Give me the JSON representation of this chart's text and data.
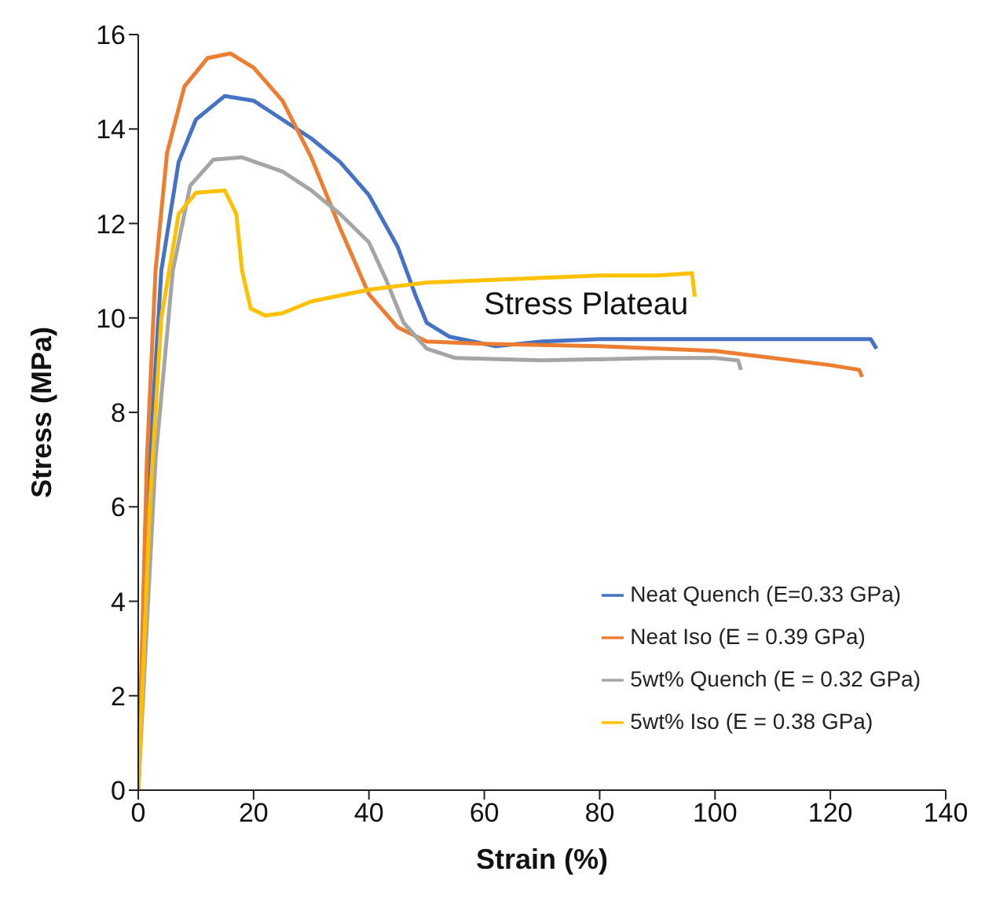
{
  "chart_data": {
    "type": "line",
    "xlabel": "Strain (%)",
    "ylabel": "Stress (MPa)",
    "xlim": [
      0,
      140
    ],
    "xticks": [
      0,
      20,
      40,
      60,
      80,
      100,
      120,
      140
    ],
    "ylim": [
      0,
      16
    ],
    "yticks": [
      0,
      2,
      4,
      6,
      8,
      10,
      12,
      14,
      16
    ],
    "grid": false,
    "legend": "bottom right",
    "marker": "none",
    "line_style": "solid",
    "annotations": [
      "Stress Plateau"
    ],
    "series": [
      {
        "name": "Neat Quench (E=0.33 GPa)",
        "color": "#4472c4",
        "x": [
          0,
          2,
          4,
          7,
          10,
          15,
          20,
          25,
          30,
          35,
          40,
          45,
          48,
          50,
          54,
          58,
          62,
          70,
          80,
          100,
          120,
          127,
          128
        ],
        "values": [
          0,
          7,
          11,
          13.3,
          14.2,
          14.7,
          14.6,
          14.2,
          13.8,
          13.3,
          12.6,
          11.5,
          10.5,
          9.9,
          9.6,
          9.5,
          9.4,
          9.5,
          9.55,
          9.55,
          9.55,
          9.55,
          9.35
        ]
      },
      {
        "name": "Neat Iso (E = 0.39 GPa)",
        "color": "#ed7d31",
        "x": [
          0,
          1.5,
          3,
          5,
          8,
          12,
          16,
          20,
          25,
          30,
          35,
          40,
          45,
          50,
          60,
          80,
          100,
          110,
          120,
          125,
          125.5
        ],
        "values": [
          0,
          7,
          11,
          13.5,
          14.9,
          15.5,
          15.6,
          15.3,
          14.6,
          13.4,
          11.9,
          10.5,
          9.8,
          9.5,
          9.45,
          9.4,
          9.3,
          9.15,
          9,
          8.9,
          8.75
        ]
      },
      {
        "name": "5wt% Quench (E = 0.32 GPa)",
        "color": "#a5a5a5",
        "x": [
          0,
          3,
          6,
          9,
          13,
          18,
          25,
          30,
          35,
          40,
          43,
          46,
          50,
          55,
          70,
          90,
          100,
          104,
          104.5
        ],
        "values": [
          0,
          7,
          11,
          12.8,
          13.35,
          13.4,
          13.1,
          12.7,
          12.2,
          11.6,
          10.8,
          9.9,
          9.35,
          9.15,
          9.1,
          9.15,
          9.15,
          9.1,
          8.9
        ]
      },
      {
        "name": "5wt% Iso (E = 0.38 GPa)",
        "color": "#ffc000",
        "x": [
          0,
          2,
          4,
          7,
          10,
          15,
          17,
          18,
          19.5,
          22,
          25,
          30,
          40,
          50,
          60,
          70,
          80,
          90,
          96,
          96.5
        ],
        "values": [
          0,
          6,
          10,
          12.2,
          12.65,
          12.7,
          12.2,
          11,
          10.2,
          10.05,
          10.1,
          10.35,
          10.6,
          10.75,
          10.8,
          10.85,
          10.9,
          10.9,
          10.95,
          10.45
        ]
      }
    ]
  }
}
